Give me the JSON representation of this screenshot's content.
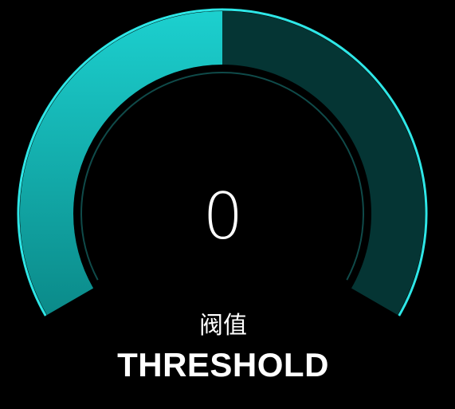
{
  "gauge": {
    "value": "0",
    "label_cn": "阀值",
    "label_en": "THRESHOLD",
    "fill_fraction": 0.5,
    "colors": {
      "background": "#000000",
      "fill_start": "#1cd0cf",
      "fill_end": "#0b8a89",
      "track": "#053534",
      "outline": "#2ee7e7",
      "inner_ring": "#0f4a49",
      "text": "#ffffff"
    }
  }
}
